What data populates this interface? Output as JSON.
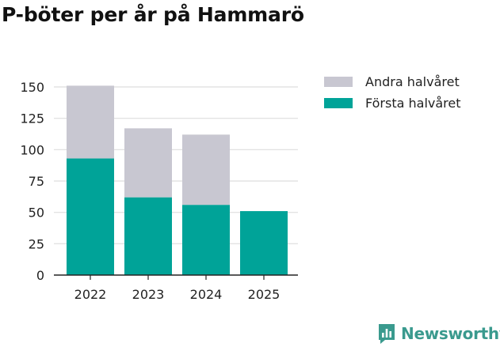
{
  "title": "P-böter per år på Hammarö",
  "colors": {
    "first_half": "#00a398",
    "second_half": "#c8c7d1",
    "grid": "#dedede",
    "axis": "#222222",
    "brand": "#3a9a8e"
  },
  "legend": {
    "items": [
      {
        "label": "Andra halvåret",
        "color": "#c8c7d1"
      },
      {
        "label": "Första halvåret",
        "color": "#00a398"
      }
    ]
  },
  "brand": {
    "name": "Newsworthy",
    "icon": "bar-chart-speech-bubble-icon"
  },
  "chart_data": {
    "type": "bar",
    "stacked": true,
    "title": "P-böter per år på Hammarö",
    "xlabel": "",
    "ylabel": "",
    "categories": [
      "2022",
      "2023",
      "2024",
      "2025"
    ],
    "series": [
      {
        "name": "Första halvåret",
        "values": [
          93,
          62,
          56,
          51
        ]
      },
      {
        "name": "Andra halvåret",
        "values": [
          58,
          55,
          56,
          null
        ]
      }
    ],
    "ylim": [
      0,
      150
    ],
    "yticks": [
      0,
      25,
      50,
      75,
      100,
      125,
      150
    ],
    "grid": true,
    "legend_position": "right"
  }
}
